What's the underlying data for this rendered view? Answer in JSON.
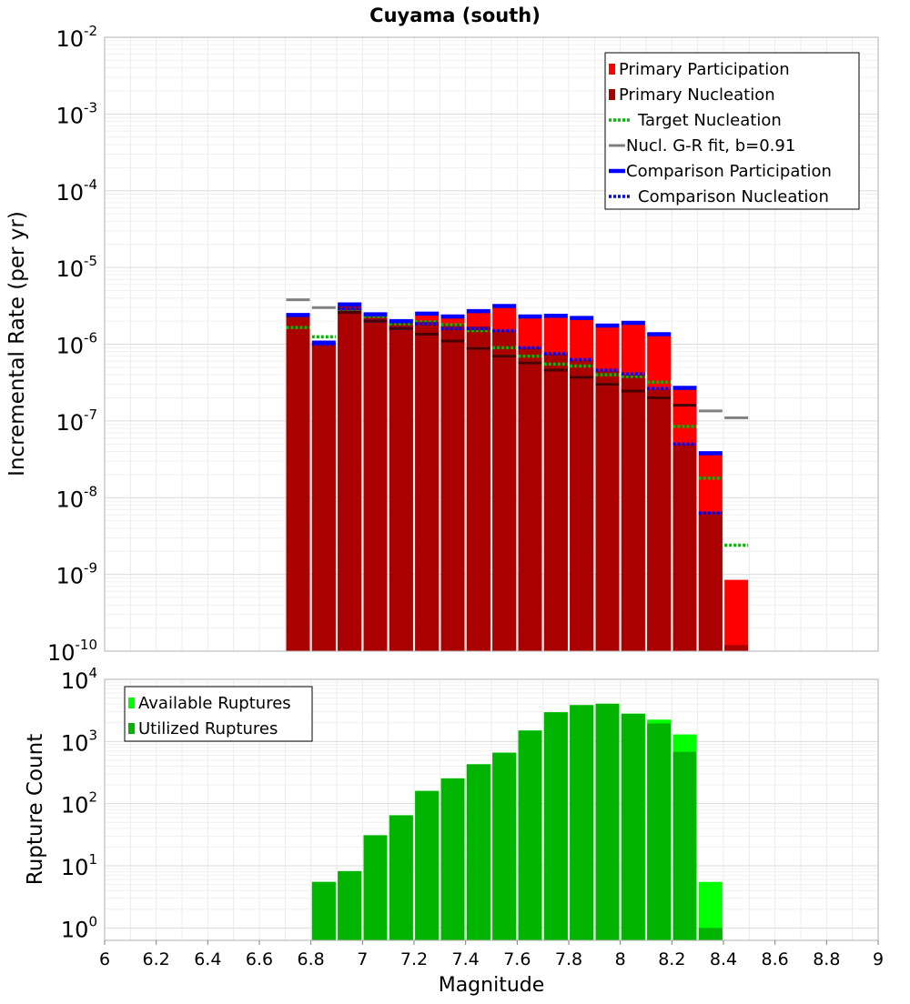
{
  "chart_data": [
    {
      "type": "bar",
      "title": "Cuyama (south)",
      "ylabel": "Incremental Rate (per yr)",
      "xlabel": "",
      "x_range": [
        6,
        9
      ],
      "y_log_range": [
        -10,
        -2
      ],
      "y_scale": "log",
      "y_tick_labels": [
        {
          "base": "10",
          "exp": "-2"
        },
        {
          "base": "10",
          "exp": "-3"
        },
        {
          "base": "10",
          "exp": "-4"
        },
        {
          "base": "10",
          "exp": "-5"
        },
        {
          "base": "10",
          "exp": "-6"
        },
        {
          "base": "10",
          "exp": "-7"
        },
        {
          "base": "10",
          "exp": "-8"
        },
        {
          "base": "10",
          "exp": "-9"
        },
        {
          "base": "10",
          "exp": "-10"
        }
      ],
      "grid": true,
      "legend_position": "top-right",
      "legend": [
        {
          "label": "Primary Participation",
          "color": "#ff0000",
          "style": "box"
        },
        {
          "label": "Primary Nucleation",
          "color": "#aa0000",
          "style": "box"
        },
        {
          "label": "Target Nucleation",
          "color": "#00bb00",
          "style": "dotted"
        },
        {
          "label": "Nucl. G-R fit, b=0.91",
          "color": "#808080",
          "style": "solid"
        },
        {
          "label": "Comparison Participation",
          "color": "#0000ff",
          "style": "thick"
        },
        {
          "label": "Comparison Nucleation",
          "color": "#0000ff",
          "style": "dotted"
        }
      ],
      "x": [
        6.75,
        6.85,
        6.95,
        7.05,
        7.15,
        7.25,
        7.35,
        7.45,
        7.55,
        7.65,
        7.75,
        7.85,
        7.95,
        8.05,
        8.15,
        8.25,
        8.35,
        8.45
      ],
      "series": [
        {
          "name": "Primary Participation",
          "color": "#ff0000",
          "values": [
            2.3e-06,
            1e-06,
            3.1e-06,
            2.3e-06,
            1.9e-06,
            2.4e-06,
            2.2e-06,
            2.6e-06,
            3e-06,
            2.2e-06,
            2.3e-06,
            2.1e-06,
            1.7e-06,
            1.85e-06,
            1.3e-06,
            2.6e-07,
            3.6e-08,
            8.5e-10
          ]
        },
        {
          "name": "Primary Nucleation",
          "color": "#aa0000",
          "values": [
            2.3e-06,
            1e-06,
            3.1e-06,
            2.3e-06,
            1.9e-06,
            2e-06,
            1.8e-06,
            1.7e-06,
            1.5e-06,
            9e-07,
            7.5e-07,
            6.2e-07,
            4.5e-07,
            4e-07,
            2.6e-07,
            5e-08,
            6.5e-09,
            1.2e-10
          ]
        },
        {
          "name": "Target Nucleation",
          "color": "#00bb00",
          "values": [
            1.65e-06,
            1.25e-06,
            2.8e-06,
            2.3e-06,
            1.85e-06,
            1.95e-06,
            1.8e-06,
            1.5e-06,
            9e-07,
            7e-07,
            5.5e-07,
            5.2e-07,
            4e-07,
            3.8e-07,
            3.2e-07,
            8.5e-08,
            1.8e-08,
            2.4e-09
          ]
        },
        {
          "name": "Nucl. G-R fit, b=0.91",
          "color": "#808080",
          "values": [
            3.8e-06,
            3e-06,
            2.6e-06,
            2e-06,
            1.6e-06,
            1.35e-06,
            1.1e-06,
            8.8e-07,
            7e-07,
            5.7e-07,
            4.6e-07,
            3.7e-07,
            3e-07,
            2.45e-07,
            2e-07,
            1.6e-07,
            1.35e-07,
            1.1e-07
          ]
        },
        {
          "name": "Comparison Participation",
          "color": "#0000ff",
          "values": [
            2.4e-06,
            1.05e-06,
            3.3e-06,
            2.45e-06,
            2e-06,
            2.5e-06,
            2.3e-06,
            2.7e-06,
            3.15e-06,
            2.3e-06,
            2.35e-06,
            2.2e-06,
            1.75e-06,
            1.9e-06,
            1.35e-06,
            2.7e-07,
            3.8e-08,
            null
          ]
        },
        {
          "name": "Comparison Nucleation",
          "color": "#0000ff",
          "values": [
            null,
            1e-06,
            2.9e-06,
            2e-06,
            1.6e-06,
            1.85e-06,
            1.6e-06,
            1.6e-06,
            1.5e-06,
            9e-07,
            7.5e-07,
            6.3e-07,
            4.6e-07,
            4.1e-07,
            2.65e-07,
            5e-08,
            6.3e-09,
            null
          ]
        }
      ]
    },
    {
      "type": "bar",
      "title": "",
      "ylabel": "Rupture Count",
      "xlabel": "Magnitude",
      "x_range": [
        6,
        9
      ],
      "y_log_range": [
        -0.2,
        4
      ],
      "y_scale": "log",
      "y_tick_labels": [
        {
          "base": "10",
          "exp": "4"
        },
        {
          "base": "10",
          "exp": "3"
        },
        {
          "base": "10",
          "exp": "2"
        },
        {
          "base": "10",
          "exp": "1"
        },
        {
          "base": "10",
          "exp": "0"
        }
      ],
      "x_tick_labels": [
        "6",
        "6.2",
        "6.4",
        "6.6",
        "6.8",
        "7",
        "7.2",
        "7.4",
        "7.6",
        "7.8",
        "8",
        "8.2",
        "8.4",
        "8.6",
        "8.8",
        "9"
      ],
      "grid": true,
      "legend_position": "top-left",
      "legend": [
        {
          "label": "Available Ruptures",
          "color": "#00ff00",
          "style": "box"
        },
        {
          "label": "Utilized Ruptures",
          "color": "#00b400",
          "style": "box"
        }
      ],
      "x": [
        6.85,
        6.95,
        7.05,
        7.15,
        7.25,
        7.35,
        7.45,
        7.55,
        7.65,
        7.75,
        7.85,
        7.95,
        8.05,
        8.15,
        8.25,
        8.35
      ],
      "series": [
        {
          "name": "Available Ruptures",
          "color": "#00ff00",
          "values": [
            5.5,
            8.2,
            31,
            65,
            160,
            255,
            430,
            660,
            1500,
            2950,
            3850,
            4050,
            2800,
            2250,
            1300,
            5.5
          ]
        },
        {
          "name": "Utilized Ruptures",
          "color": "#00b400",
          "values": [
            5.5,
            8.2,
            31,
            65,
            160,
            255,
            430,
            660,
            1500,
            2950,
            3850,
            4050,
            2800,
            1950,
            680,
            1.0
          ]
        }
      ]
    }
  ]
}
